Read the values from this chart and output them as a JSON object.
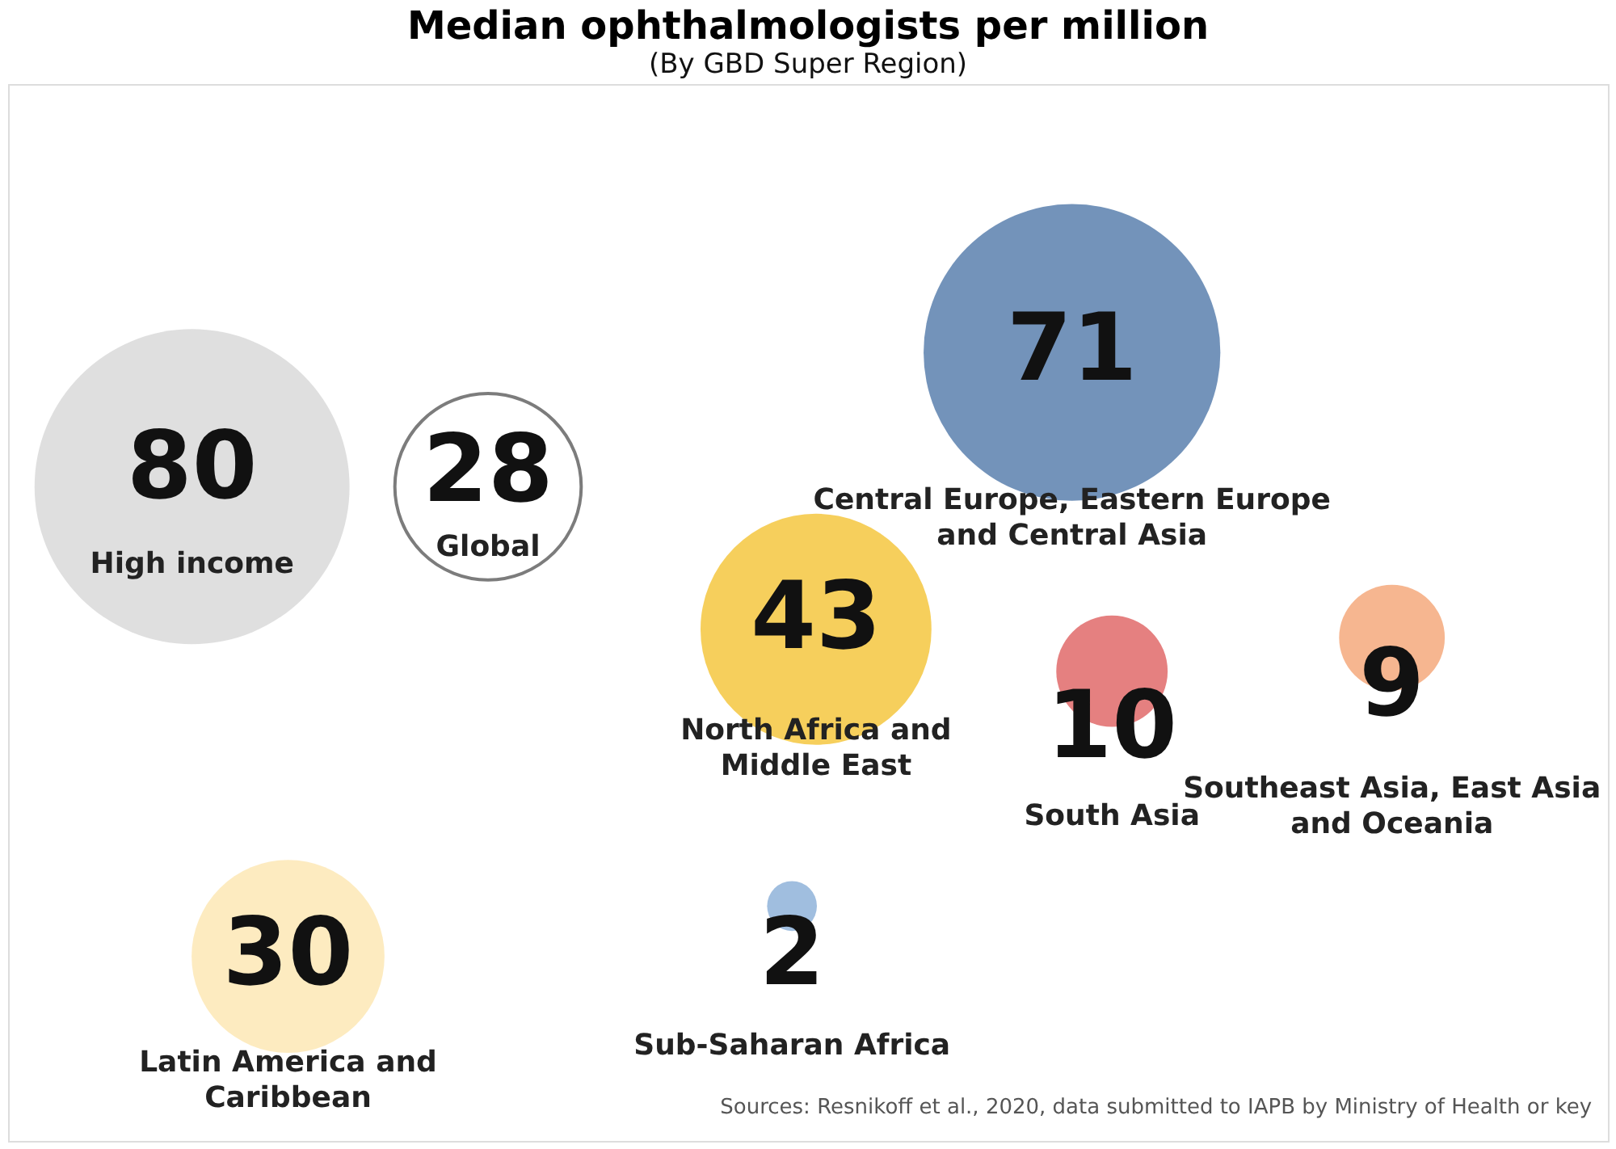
{
  "chart_data": {
    "type": "other",
    "title": "Median ophthalmologists per million",
    "subtitle": "(By GBD Super Region)",
    "categories": [
      "High income",
      "Global",
      "Latin America and Caribbean",
      "North Africa and Middle East",
      "Sub-Saharan Africa",
      "Central Europe, Eastern Europe and Central Asia",
      "South Asia",
      "Southeast Asia, East Asia and Oceania"
    ],
    "values": [
      80,
      28,
      30,
      43,
      2,
      71,
      10,
      9
    ],
    "colors": [
      "#d9d9d9",
      "#ffffff",
      "#fde8b5",
      "#f5c73f",
      "#8fb3d9",
      "#5a80ae",
      "#e06a6a",
      "#f5a97c"
    ],
    "data_labels": true,
    "annotations": [
      "Sources: Resnikoff et al., 2020, data submitted to IAPB by Ministry of Health or key"
    ]
  }
}
